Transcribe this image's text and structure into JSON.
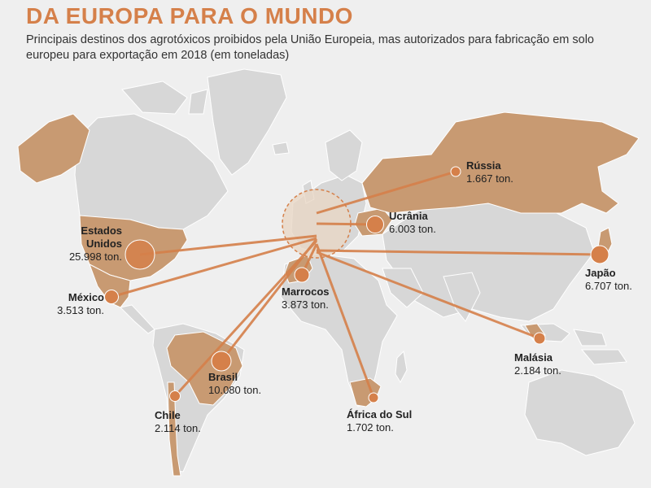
{
  "title": "DA EUROPA PARA O MUNDO",
  "subtitle": "Principais destinos dos agrotóxicos proibidos pela União Europeia, mas autorizados para fabricação em solo europeu para exportação em 2018 (em toneladas)",
  "colors": {
    "accent": "#d5804a",
    "highlight_land": "#c89a72",
    "land": "#d7d7d7",
    "background": "#efefef"
  },
  "destinations": [
    {
      "name_lines": [
        "Estados",
        "Unidos"
      ],
      "value": "25.998 ton.",
      "tonnes": 25998
    },
    {
      "name_lines": [
        "México"
      ],
      "value": "3.513 ton.",
      "tonnes": 3513
    },
    {
      "name_lines": [
        "Chile"
      ],
      "value": "2.114 ton.",
      "tonnes": 2114
    },
    {
      "name_lines": [
        "Brasil"
      ],
      "value": "10.080 ton.",
      "tonnes": 10080
    },
    {
      "name_lines": [
        "Marrocos"
      ],
      "value": "3.873 ton.",
      "tonnes": 3873
    },
    {
      "name_lines": [
        "África do Sul"
      ],
      "value": "1.702 ton.",
      "tonnes": 1702
    },
    {
      "name_lines": [
        "Rússia"
      ],
      "value": "1.667 ton.",
      "tonnes": 1667
    },
    {
      "name_lines": [
        "Ucrânia"
      ],
      "value": "6.003 ton.",
      "tonnes": 6003
    },
    {
      "name_lines": [
        "Japão"
      ],
      "value": "6.707 ton.",
      "tonnes": 6707
    },
    {
      "name_lines": [
        "Malásia"
      ],
      "value": "2.184 ton.",
      "tonnes": 2184
    }
  ]
}
